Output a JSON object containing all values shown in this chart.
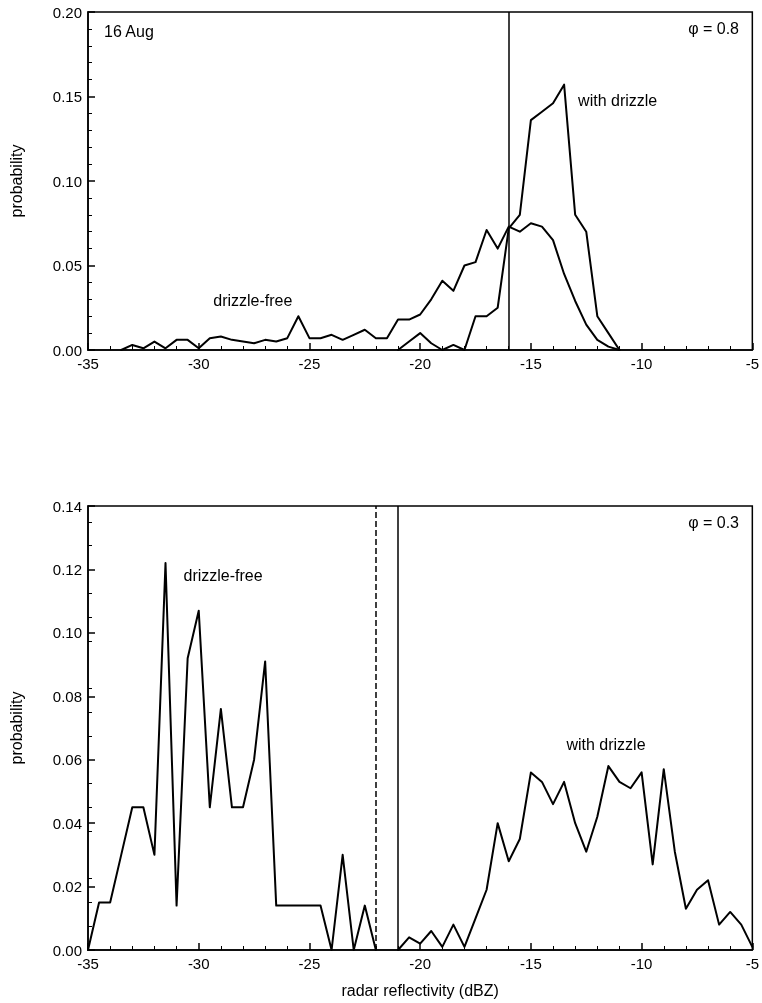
{
  "chart_data": [
    {
      "type": "line",
      "title": "16 Aug",
      "ylabel": "probability",
      "annotations": [
        "φ = 0.8"
      ],
      "series": [
        {
          "name": "drizzle-free",
          "color": "#000000",
          "x": [
            -33.5,
            -33,
            -32.5,
            -32,
            -31.5,
            -31,
            -30.5,
            -30,
            -29.5,
            -29,
            -28.5,
            -28,
            -27.5,
            -27,
            -26.5,
            -26,
            -25.5,
            -25,
            -24.5,
            -24,
            -23.5,
            -23,
            -22.5,
            -22,
            -21.5,
            -21,
            -20.5,
            -20,
            -19.5,
            -19,
            -18.5,
            -18,
            -17.5,
            -17,
            -16.5,
            -16,
            -15.5,
            -15,
            -14.5,
            -14,
            -13.5,
            -13,
            -12.5,
            -12,
            -11.5,
            -11
          ],
          "values": [
            0,
            0.003,
            0.001,
            0.005,
            0.001,
            0.006,
            0.006,
            0.001,
            0.007,
            0.008,
            0.006,
            0.005,
            0.004,
            0.006,
            0.005,
            0.007,
            0.02,
            0.007,
            0.007,
            0.009,
            0.006,
            0.009,
            0.012,
            0.007,
            0.007,
            0.018,
            0.018,
            0.021,
            0.03,
            0.041,
            0.035,
            0.05,
            0.052,
            0.071,
            0.06,
            0.073,
            0.07,
            0.075,
            0.073,
            0.065,
            0.045,
            0.029,
            0.015,
            0.006,
            0.002,
            0
          ]
        },
        {
          "name": "with drizzle",
          "color": "#000000",
          "x": [
            -21,
            -20.5,
            -20,
            -19.5,
            -19,
            -18.5,
            -18,
            -17.5,
            -17,
            -16.5,
            -16,
            -15.5,
            -15,
            -14.5,
            -14,
            -13.5,
            -13,
            -12.5,
            -12,
            -11.5,
            -11
          ],
          "values": [
            0,
            0.005,
            0.01,
            0.004,
            0,
            0.003,
            0,
            0.02,
            0.02,
            0.025,
            0.072,
            0.08,
            0.136,
            0.141,
            0.146,
            0.157,
            0.08,
            0.07,
            0.02,
            0.01,
            0
          ]
        }
      ],
      "xlim": [
        -35,
        -5
      ],
      "xticks": [
        -35,
        -30,
        -25,
        -20,
        -15,
        -10,
        -5
      ],
      "ylim": [
        0,
        0.2
      ],
      "yticks": [
        {
          "value": 0,
          "label": "0.00"
        },
        {
          "value": 0.05,
          "label": "0.05"
        },
        {
          "value": 0.1,
          "label": "0.10"
        },
        {
          "value": 0.15,
          "label": "0.15"
        },
        {
          "value": 0.2,
          "label": "0.20"
        }
      ],
      "ref_lines": [
        {
          "axis": "x",
          "value": -16,
          "label": null,
          "color": "#000000",
          "line_style": "solid"
        }
      ],
      "grid": false,
      "legend": false,
      "marker": "none",
      "line_style": "solid"
    },
    {
      "type": "line",
      "xlabel": "radar reflectivity (dBZ)",
      "ylabel": "probability",
      "annotations": [
        "φ = 0.3"
      ],
      "series": [
        {
          "name": "drizzle-free",
          "color": "#000000",
          "x": [
            -35,
            -34.5,
            -34,
            -33.5,
            -33,
            -32.5,
            -32,
            -31.5,
            -31,
            -30.5,
            -30,
            -29.5,
            -29,
            -28.5,
            -28,
            -27.5,
            -27,
            -26.5,
            -26,
            -25.5,
            -25,
            -24.5,
            -24,
            -23.5,
            -23,
            -22.5,
            -22
          ],
          "values": [
            0,
            0.015,
            0.015,
            0.03,
            0.045,
            0.045,
            0.03,
            0.122,
            0.014,
            0.092,
            0.107,
            0.045,
            0.076,
            0.045,
            0.045,
            0.06,
            0.091,
            0.014,
            0.014,
            0.014,
            0.014,
            0.014,
            0,
            0.03,
            0,
            0.014,
            0
          ]
        },
        {
          "name": "with drizzle",
          "color": "#000000",
          "x": [
            -21,
            -20.5,
            -20,
            -19.5,
            -19,
            -18.5,
            -18,
            -17.5,
            -17,
            -16.5,
            -16,
            -15.5,
            -15,
            -14.5,
            -14,
            -13.5,
            -13,
            -12.5,
            -12,
            -11.5,
            -11,
            -10.5,
            -10,
            -9.5,
            -9,
            -8.5,
            -8,
            -7.5,
            -7,
            -6.5,
            -6,
            -5.5,
            -5
          ],
          "values": [
            0,
            0.004,
            0.002,
            0.006,
            0.001,
            0.008,
            0.001,
            0.01,
            0.019,
            0.04,
            0.028,
            0.035,
            0.056,
            0.053,
            0.046,
            0.053,
            0.04,
            0.031,
            0.042,
            0.058,
            0.053,
            0.051,
            0.056,
            0.027,
            0.057,
            0.031,
            0.013,
            0.019,
            0.022,
            0.008,
            0.012,
            0.008,
            0.001
          ]
        }
      ],
      "xlim": [
        -35,
        -5
      ],
      "xticks": [
        -35,
        -30,
        -25,
        -20,
        -15,
        -10,
        -5
      ],
      "ylim": [
        0,
        0.14
      ],
      "yticks": [
        {
          "value": 0,
          "label": "0.00"
        },
        {
          "value": 0.02,
          "label": "0.02"
        },
        {
          "value": 0.04,
          "label": "0.04"
        },
        {
          "value": 0.06,
          "label": "0.06"
        },
        {
          "value": 0.08,
          "label": "0.08"
        },
        {
          "value": 0.1,
          "label": "0.10"
        },
        {
          "value": 0.12,
          "label": "0.12"
        },
        {
          "value": 0.14,
          "label": "0.14"
        }
      ],
      "ref_lines": [
        {
          "axis": "x",
          "value": -22,
          "label": null,
          "color": "#000000",
          "line_style": "dashed"
        },
        {
          "axis": "x",
          "value": -21,
          "label": null,
          "color": "#000000",
          "line_style": "solid"
        }
      ],
      "grid": false,
      "legend": false,
      "marker": "none",
      "line_style": "solid"
    }
  ]
}
